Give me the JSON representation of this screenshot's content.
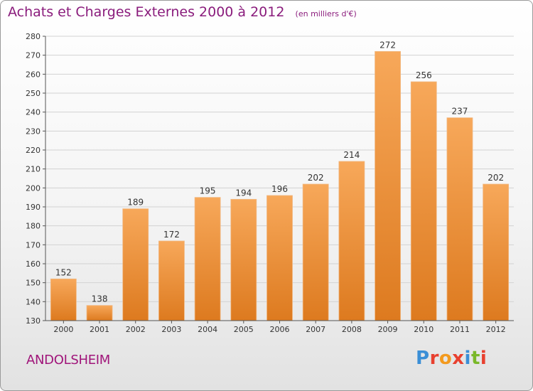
{
  "title": "Achats et Charges Externes 2000 à 2012",
  "unit": "(en milliers d'€)",
  "commune": "ANDOLSHEIM",
  "brand": {
    "text": "Proxiti",
    "colors": [
      "#3b8fd6",
      "#e8402f",
      "#f39a1e",
      "#e8402f",
      "#3b8fd6",
      "#7ab829",
      "#e8402f"
    ]
  },
  "colors": {
    "bar_top": "#f7a85a",
    "bar_bottom": "#dd7a1f",
    "title": "#8a1c7c",
    "commune": "#a0157a"
  },
  "chart_data": {
    "type": "bar",
    "categories": [
      "2000",
      "2001",
      "2002",
      "2003",
      "2004",
      "2005",
      "2006",
      "2007",
      "2008",
      "2009",
      "2010",
      "2011",
      "2012"
    ],
    "values": [
      152,
      138,
      189,
      172,
      195,
      194,
      196,
      202,
      214,
      272,
      256,
      237,
      202
    ],
    "ylim": [
      130,
      280
    ],
    "yticks": [
      130,
      140,
      150,
      160,
      170,
      180,
      190,
      200,
      210,
      220,
      230,
      240,
      250,
      260,
      270,
      280
    ],
    "grid": true
  }
}
